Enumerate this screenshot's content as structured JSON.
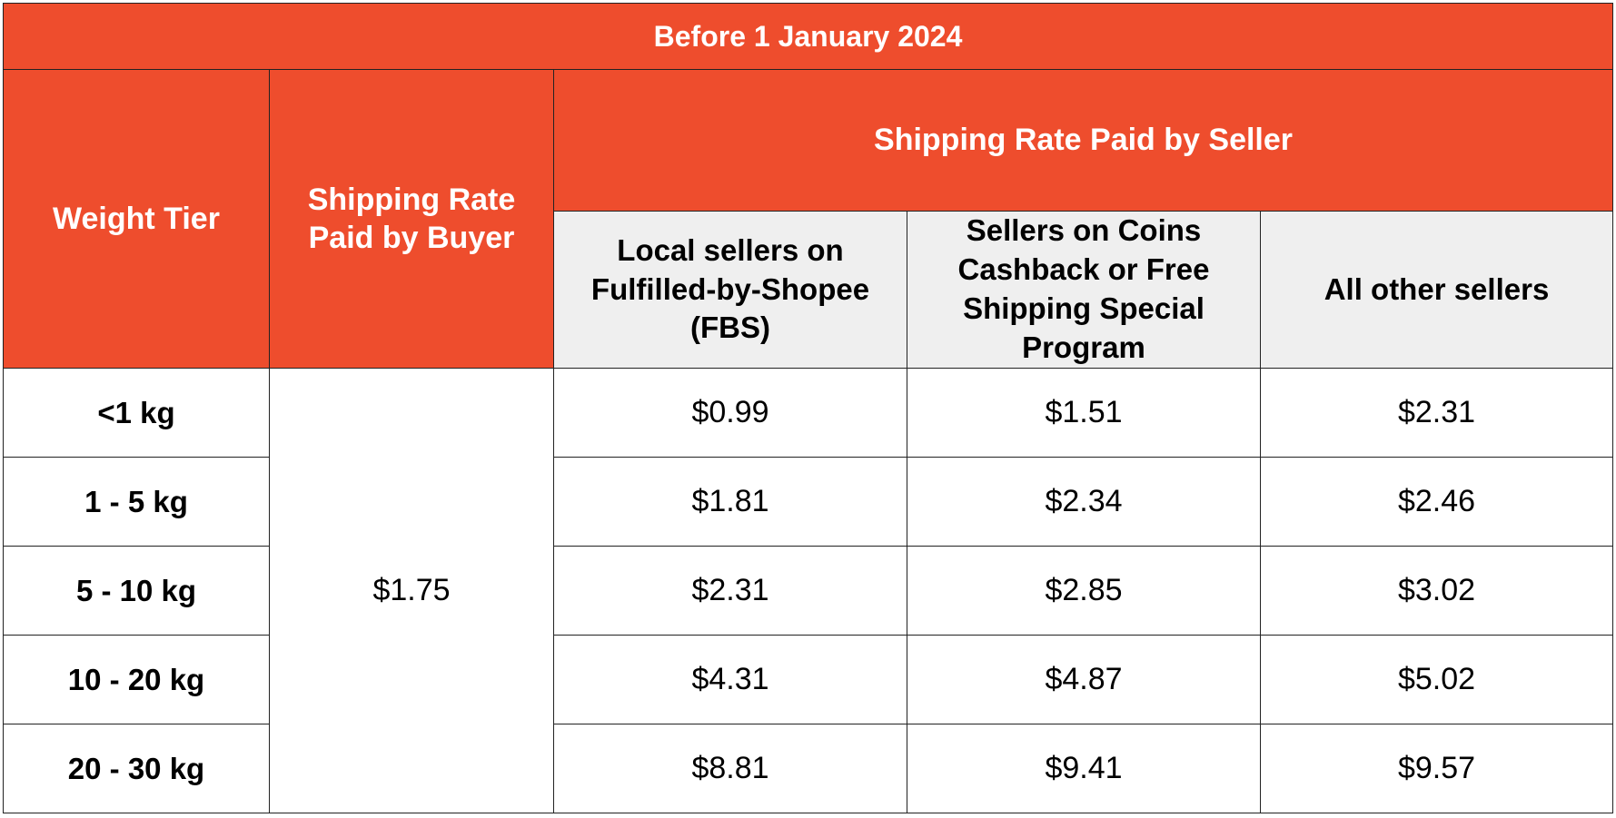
{
  "colors": {
    "header_bg": "#ee4d2d",
    "subheader_bg": "#efefef",
    "border": "#222222"
  },
  "table": {
    "title": "Before 1 January 2024",
    "col_weight_tier": "Weight Tier",
    "col_buyer": "Shipping Rate Paid by Buyer",
    "col_seller_group": "Shipping Rate Paid by Seller",
    "seller_columns": [
      "Local sellers on Fulfilled-by-Shopee (FBS)",
      "Sellers on Coins Cashback or Free Shipping Special Program",
      "All other sellers"
    ],
    "buyer_rate": "$1.75",
    "rows": [
      {
        "tier": "<1 kg",
        "values": [
          "$0.99",
          "$1.51",
          "$2.31"
        ]
      },
      {
        "tier": "1 - 5 kg",
        "values": [
          "$1.81",
          "$2.34",
          "$2.46"
        ]
      },
      {
        "tier": "5 - 10 kg",
        "values": [
          "$2.31",
          "$2.85",
          "$3.02"
        ]
      },
      {
        "tier": "10 - 20 kg",
        "values": [
          "$4.31",
          "$4.87",
          "$5.02"
        ]
      },
      {
        "tier": "20 - 30 kg",
        "values": [
          "$8.81",
          "$9.41",
          "$9.57"
        ]
      }
    ]
  }
}
